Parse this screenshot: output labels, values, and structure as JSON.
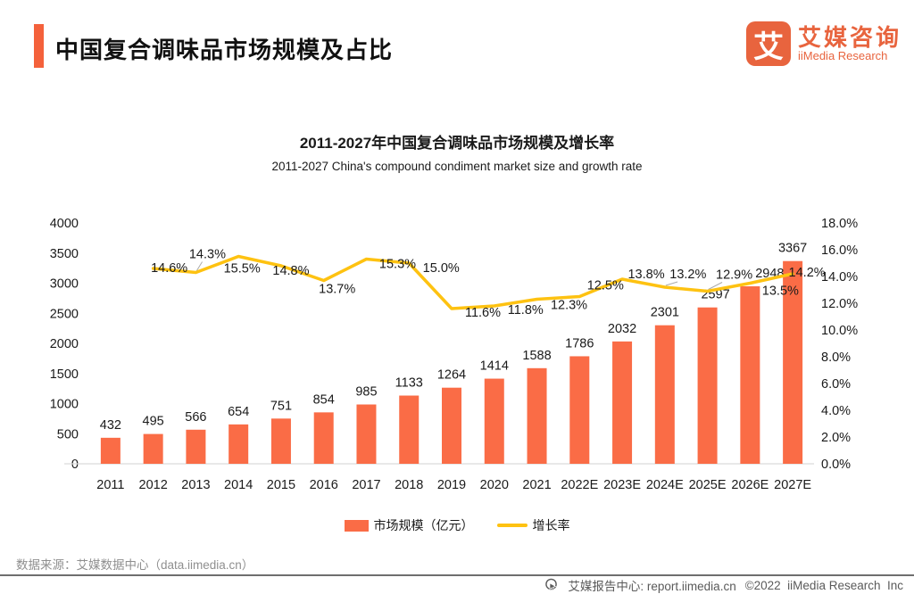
{
  "header": {
    "title": "中国复合调味品市场规模及占比",
    "logo": {
      "glyph": "艾",
      "name_cn": "艾媒咨询",
      "name_en": "iiMedia Research"
    }
  },
  "chart": {
    "title": "2011-2027年中国复合调味品市场规模及增长率",
    "subtitle": "2011-2027 China's compound condiment market size and growth rate"
  },
  "chart_data": {
    "type": "bar+line",
    "categories": [
      "2011",
      "2012",
      "2013",
      "2014",
      "2015",
      "2016",
      "2017",
      "2018",
      "2019",
      "2020",
      "2021",
      "2022E",
      "2023E",
      "2024E",
      "2025E",
      "2026E",
      "2027E"
    ],
    "series": [
      {
        "name": "市场规模（亿元）",
        "type": "bar",
        "color": "#FA6C46",
        "values": [
          432,
          495,
          566,
          654,
          751,
          854,
          985,
          1133,
          1264,
          1414,
          1588,
          1786,
          2032,
          2301,
          2597,
          2948,
          3367
        ]
      },
      {
        "name": "增长率",
        "type": "line",
        "color": "#FEC211",
        "values": [
          null,
          14.6,
          14.3,
          15.5,
          14.8,
          13.7,
          15.3,
          15.0,
          11.6,
          11.8,
          12.3,
          12.5,
          13.8,
          13.2,
          12.9,
          13.5,
          14.2
        ]
      }
    ],
    "left_axis": {
      "min": 0,
      "max": 4000,
      "step": 500
    },
    "right_axis": {
      "min": 0,
      "max": 18,
      "step": 2,
      "suffix": "%"
    },
    "grid": false,
    "legend_position": "bottom",
    "label_layout": {
      "line_label_offsets": [
        null,
        [
          18,
          -1,
          0
        ],
        [
          13,
          -21,
          1
        ],
        [
          4,
          13,
          0
        ],
        [
          11,
          5,
          0
        ],
        [
          15,
          9,
          0
        ],
        [
          35,
          5,
          0
        ],
        [
          36,
          5,
          0
        ],
        [
          35,
          4,
          0
        ],
        [
          35,
          4,
          0
        ],
        [
          36,
          6,
          0
        ],
        [
          29,
          -13,
          0
        ],
        [
          27,
          -6,
          0
        ],
        [
          26,
          -15,
          1
        ],
        [
          30,
          -19,
          1
        ],
        [
          34,
          8,
          0
        ],
        [
          16,
          -2,
          0
        ]
      ],
      "bar_label_dx": [
        0,
        0,
        0,
        0,
        0,
        0,
        0,
        0,
        0,
        0,
        0,
        0,
        0,
        0,
        9,
        22,
        0
      ]
    }
  },
  "legend": {
    "bar_label": "市场规模（亿元）",
    "line_label": "增长率"
  },
  "footer": {
    "source": "数据来源：艾媒数据中心（data.iimedia.cn）",
    "report_label": "艾媒报告中心: report.iimedia.cn",
    "copyright": "©2022  iiMedia Research  Inc"
  },
  "colors": {
    "accent": "#F4613B",
    "bar": "#FA6C46",
    "line": "#FEC211",
    "baseline": "#D9D9D9",
    "leader": "#ABABAB"
  }
}
